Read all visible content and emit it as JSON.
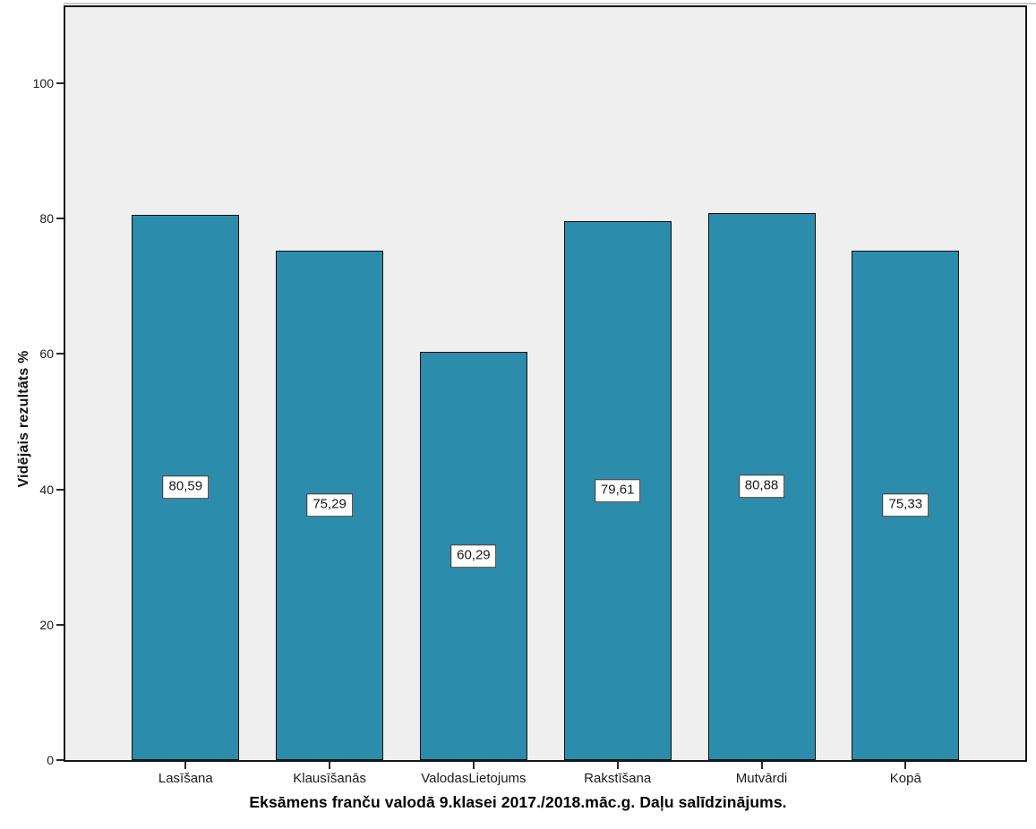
{
  "chart_data": {
    "type": "bar",
    "title": "Eksāmens franču valodā 9.klasei 2017./2018.māc.g. Daļu salīdzinājums.",
    "xlabel": "",
    "ylabel": "Vidējais rezultāts %",
    "categories": [
      "Lasīšana",
      "Klausīšanās",
      "ValodasLietojums",
      "Rakstīšana",
      "Mutvārdi",
      "Kopā"
    ],
    "values": [
      80.59,
      75.29,
      60.29,
      79.61,
      80.88,
      75.33
    ],
    "value_labels": [
      "80,59",
      "75,29",
      "60,29",
      "79,61",
      "80,88",
      "75,33"
    ],
    "y_ticks": [
      0,
      20,
      40,
      60,
      80,
      100
    ],
    "ylim": [
      0,
      111
    ],
    "grid": false,
    "legend": false,
    "bar_color": "#2B8CAC",
    "bar_border_color": "#101010",
    "plot_background": "#EFEFEF",
    "value_label_box": {
      "background": "#FFFFFF",
      "border": "#2A2A2A"
    }
  }
}
